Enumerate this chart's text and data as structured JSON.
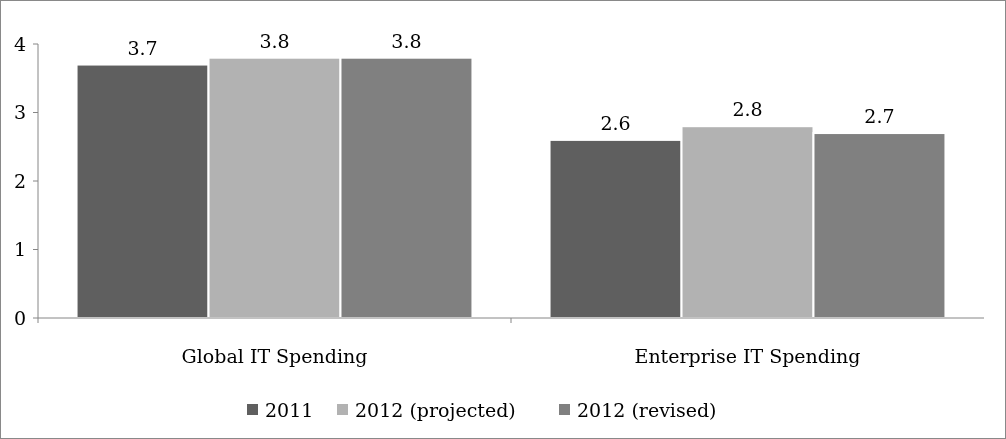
{
  "chart_data": {
    "type": "bar",
    "categories": [
      "Global IT Spending",
      "Enterprise IT Spending"
    ],
    "series": [
      {
        "name": "2011",
        "color": "#5f5f5f",
        "values": [
          3.7,
          2.6
        ]
      },
      {
        "name": "2012 (projected)",
        "color": "#b2b2b2",
        "values": [
          3.8,
          2.8
        ]
      },
      {
        "name": "2012 (revised)",
        "color": "#808080",
        "values": [
          3.8,
          2.7
        ]
      }
    ],
    "ylim": [
      0,
      4
    ],
    "yticks": [
      0,
      1,
      2,
      3,
      4
    ],
    "grid": false,
    "legend": "bottom",
    "data_labels": true
  }
}
